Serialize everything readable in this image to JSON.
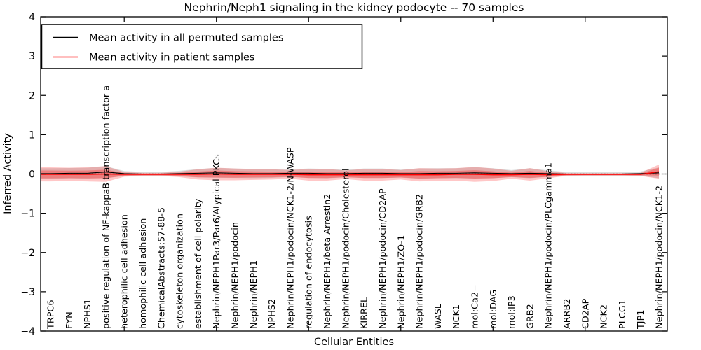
{
  "chart_data": {
    "type": "line",
    "title": "Nephrin/Neph1 signaling in the kidney podocyte -- 70 samples",
    "xlabel": "Cellular Entities",
    "ylabel": "Inferred Activity",
    "ylim": [
      -4,
      4
    ],
    "ytick_values": [
      4,
      3,
      2,
      1,
      0,
      -1,
      -2,
      -3,
      -4
    ],
    "ytick_labels": [
      "4",
      "3",
      "2",
      "1",
      "0",
      "−1",
      "−2",
      "−3",
      "−4"
    ],
    "xtick_indices": [
      4,
      9,
      14,
      19,
      24,
      29
    ],
    "grid": false,
    "legend_position": "upper-left",
    "zero_line": 0,
    "categories": [
      "TRPC6",
      "FYN",
      "NPHS1",
      "positive regulation of NF-kappaB transcription factor a",
      "heterophilic cell adhesion",
      "homophilic cell adhesion",
      "ChemicalAbstracts:57-88-5",
      "cytoskeleton organization",
      "establishment of cell polarity",
      "Nephrin/NEPH1Par3/Par6/Atypical PKCs",
      "Nephrin/NEPH1/podocin",
      "Nephrin/NEPH1",
      "NPHS2",
      "Nephrin/NEPH1/podocin/NCK1-2/N-WASP",
      "regulation of endocytosis",
      "Nephrin/NEPH1/beta Arrestin2",
      "Nephrin/NEPH1/podocin/Cholesterol",
      "KIRREL",
      "Nephrin/NEPH1/podocin/CD2AP",
      "Nephrin/NEPH1/ZO-1",
      "Nephrin/NEPH1/podocin/GRB2",
      "WASL",
      "NCK1",
      "mol:Ca2+",
      "mol:DAG",
      "mol:IP3",
      "GRB2",
      "Nephrin/NEPH1/podocin/PLCgamma1",
      "ARRB2",
      "CD2AP",
      "NCK2",
      "PLCG1",
      "TJP1",
      "Nephrin/NEPH1/podocin/NCK1-2"
    ],
    "series": [
      {
        "name": "Mean activity in all permuted samples",
        "color": "#000000",
        "band_color": "#000000",
        "mean": [
          0.01,
          0.02,
          0.02,
          0.05,
          0.01,
          0,
          0,
          0.01,
          0.02,
          0.03,
          0.02,
          0.01,
          0.01,
          0.02,
          0.02,
          0.01,
          0.01,
          0.02,
          0.02,
          0.01,
          0.01,
          0.02,
          0.02,
          0.03,
          0.02,
          0.01,
          0.02,
          0.01,
          0,
          0,
          0,
          0,
          0.01,
          0.03
        ],
        "band_half": [
          0.138,
          0.132,
          0.138,
          0.15,
          0.066,
          0.054,
          0.054,
          0.072,
          0.108,
          0.126,
          0.12,
          0.114,
          0.108,
          0.096,
          0.12,
          0.12,
          0.096,
          0.12,
          0.12,
          0.102,
          0.132,
          0.126,
          0.126,
          0.144,
          0.126,
          0.09,
          0.126,
          0.084,
          0.051,
          0.048,
          0.048,
          0.048,
          0.054,
          0.138
        ]
      },
      {
        "name": "Mean activity in patient samples",
        "color": "#ff0000",
        "band_color": "#ff0000",
        "mean": [
          -0.01,
          -0.01,
          -0.01,
          0,
          -0.01,
          -0.01,
          -0.01,
          -0.01,
          -0.01,
          0,
          -0.01,
          -0.01,
          -0.01,
          -0.01,
          -0.02,
          -0.02,
          -0.02,
          -0.02,
          -0.02,
          -0.02,
          -0.02,
          -0.02,
          -0.01,
          -0.01,
          -0.02,
          -0.02,
          -0.01,
          -0.02,
          -0.01,
          -0.01,
          -0.01,
          -0.01,
          -0.01,
          0.06
        ],
        "band_outer_half": [
          0.18,
          0.17,
          0.18,
          0.2,
          0.06,
          0.04,
          0.04,
          0.07,
          0.13,
          0.16,
          0.15,
          0.14,
          0.13,
          0.11,
          0.15,
          0.15,
          0.11,
          0.15,
          0.15,
          0.12,
          0.17,
          0.16,
          0.16,
          0.19,
          0.16,
          0.1,
          0.16,
          0.09,
          0.035,
          0.03,
          0.03,
          0.03,
          0.04,
          0.18
        ],
        "band_inner_half": [
          0.099,
          0.094,
          0.099,
          0.11,
          0.033,
          0.022,
          0.022,
          0.039,
          0.072,
          0.088,
          0.083,
          0.077,
          0.072,
          0.061,
          0.083,
          0.083,
          0.061,
          0.083,
          0.083,
          0.066,
          0.094,
          0.088,
          0.088,
          0.105,
          0.088,
          0.055,
          0.088,
          0.05,
          0.019,
          0.017,
          0.017,
          0.017,
          0.022,
          0.1
        ]
      }
    ]
  }
}
